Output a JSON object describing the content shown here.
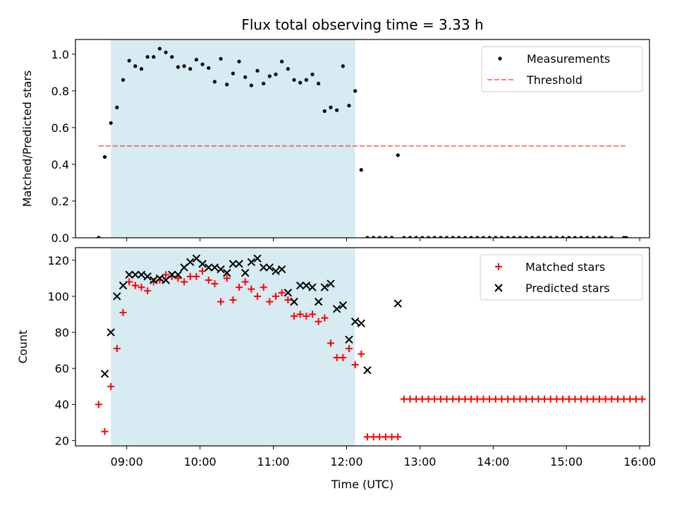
{
  "title": "Flux total observing time = 3.33 h",
  "chart_data": [
    {
      "type": "scatter",
      "ylabel": "Matched/Predicted stars",
      "xlabel": "",
      "xlim": [
        "08:18",
        "16:08"
      ],
      "ylim": [
        0,
        1.08
      ],
      "yticks": [
        "0.0",
        "0.2",
        "0.4",
        "0.6",
        "0.8",
        "1.0"
      ],
      "shaded_interval": [
        "08:47",
        "12:07"
      ],
      "shade_color": "#add8e6",
      "threshold": {
        "name": "Threshold",
        "value": 0.5,
        "x_range": [
          "08:37",
          "15:49"
        ],
        "color": "#ff0000"
      },
      "legend": {
        "placement": "top-right",
        "entries": [
          "Measurements",
          "Threshold"
        ]
      },
      "series": [
        {
          "name": "Measurements",
          "marker": "dot",
          "color": "#000000",
          "points": [
            [
              "08:37",
              0.0
            ],
            [
              "08:42",
              0.44
            ],
            [
              "08:47",
              0.625
            ],
            [
              "08:52",
              0.71
            ],
            [
              "08:57",
              0.86
            ],
            [
              "09:02",
              0.965
            ],
            [
              "09:07",
              0.935
            ],
            [
              "09:12",
              0.92
            ],
            [
              "09:17",
              0.985
            ],
            [
              "09:22",
              0.985
            ],
            [
              "09:27",
              1.03
            ],
            [
              "09:32",
              1.01
            ],
            [
              "09:37",
              0.985
            ],
            [
              "09:42",
              0.93
            ],
            [
              "09:47",
              0.935
            ],
            [
              "09:52",
              0.92
            ],
            [
              "09:57",
              0.97
            ],
            [
              "10:02",
              0.945
            ],
            [
              "10:07",
              0.925
            ],
            [
              "10:12",
              0.85
            ],
            [
              "10:17",
              0.975
            ],
            [
              "10:22",
              0.835
            ],
            [
              "10:27",
              0.895
            ],
            [
              "10:32",
              0.96
            ],
            [
              "10:37",
              0.875
            ],
            [
              "10:42",
              0.83
            ],
            [
              "10:47",
              0.91
            ],
            [
              "10:52",
              0.84
            ],
            [
              "10:57",
              0.88
            ],
            [
              "11:02",
              0.89
            ],
            [
              "11:07",
              0.96
            ],
            [
              "11:12",
              0.92
            ],
            [
              "11:17",
              0.86
            ],
            [
              "11:22",
              0.845
            ],
            [
              "11:27",
              0.86
            ],
            [
              "11:32",
              0.89
            ],
            [
              "11:37",
              0.84
            ],
            [
              "11:42",
              0.69
            ],
            [
              "11:47",
              0.71
            ],
            [
              "11:52",
              0.695
            ],
            [
              "11:57",
              0.935
            ],
            [
              "12:02",
              0.72
            ],
            [
              "12:07",
              0.8
            ],
            [
              "12:12",
              0.37
            ],
            [
              "12:17",
              0.0
            ],
            [
              "12:22",
              0.0
            ],
            [
              "12:27",
              0.0
            ],
            [
              "12:32",
              0.0
            ],
            [
              "12:37",
              0.0
            ],
            [
              "12:42",
              0.45
            ],
            [
              "12:47",
              0.0
            ],
            [
              "12:52",
              0.0
            ],
            [
              "12:57",
              0.0
            ],
            [
              "13:02",
              0.0
            ],
            [
              "13:07",
              0.0
            ],
            [
              "13:12",
              0.0
            ],
            [
              "13:17",
              0.0
            ],
            [
              "13:22",
              0.0
            ],
            [
              "13:27",
              0.0
            ],
            [
              "13:32",
              0.0
            ],
            [
              "13:37",
              0.0
            ],
            [
              "13:42",
              0.0
            ],
            [
              "13:47",
              0.0
            ],
            [
              "13:52",
              0.0
            ],
            [
              "13:57",
              0.0
            ],
            [
              "14:02",
              0.0
            ],
            [
              "14:07",
              0.0
            ],
            [
              "14:12",
              0.0
            ],
            [
              "14:17",
              0.0
            ],
            [
              "14:22",
              0.0
            ],
            [
              "14:27",
              0.0
            ],
            [
              "14:32",
              0.0
            ],
            [
              "14:37",
              0.0
            ],
            [
              "14:42",
              0.0
            ],
            [
              "14:47",
              0.0
            ],
            [
              "14:52",
              0.0
            ],
            [
              "14:57",
              0.0
            ],
            [
              "15:02",
              0.0
            ],
            [
              "15:07",
              0.0
            ],
            [
              "15:12",
              0.0
            ],
            [
              "15:17",
              0.0
            ],
            [
              "15:22",
              0.0
            ],
            [
              "15:27",
              0.0
            ],
            [
              "15:32",
              0.0
            ],
            [
              "15:37",
              0.0
            ],
            [
              "15:47",
              0.0
            ],
            [
              "15:49",
              0.0
            ]
          ]
        }
      ]
    },
    {
      "type": "scatter",
      "ylabel": "Count",
      "xlabel": "Time (UTC)",
      "xlim": [
        "08:18",
        "16:08"
      ],
      "ylim": [
        17,
        127
      ],
      "yticks": [
        "20",
        "40",
        "60",
        "80",
        "100",
        "120"
      ],
      "xticks": [
        "09:00",
        "10:00",
        "11:00",
        "12:00",
        "13:00",
        "14:00",
        "15:00",
        "16:00"
      ],
      "shaded_interval": [
        "08:47",
        "12:07"
      ],
      "shade_color": "#add8e6",
      "legend": {
        "placement": "top-right",
        "entries": [
          "Matched stars",
          "Predicted stars"
        ]
      },
      "series": [
        {
          "name": "Matched stars",
          "marker": "plus",
          "color": "#ff0000",
          "points": [
            [
              "08:37",
              40
            ],
            [
              "08:42",
              25
            ],
            [
              "08:47",
              50
            ],
            [
              "08:52",
              71
            ],
            [
              "08:57",
              91
            ],
            [
              "09:02",
              108
            ],
            [
              "09:07",
              106
            ],
            [
              "09:12",
              105
            ],
            [
              "09:17",
              103
            ],
            [
              "09:22",
              108
            ],
            [
              "09:27",
              109
            ],
            [
              "09:32",
              112
            ],
            [
              "09:37",
              111
            ],
            [
              "09:42",
              110
            ],
            [
              "09:47",
              108
            ],
            [
              "09:52",
              111
            ],
            [
              "09:57",
              111
            ],
            [
              "10:02",
              114
            ],
            [
              "10:07",
              109
            ],
            [
              "10:12",
              107
            ],
            [
              "10:17",
              97
            ],
            [
              "10:22",
              110
            ],
            [
              "10:27",
              98
            ],
            [
              "10:32",
              105
            ],
            [
              "10:37",
              108
            ],
            [
              "10:42",
              104
            ],
            [
              "10:47",
              100
            ],
            [
              "10:52",
              105
            ],
            [
              "10:57",
              97
            ],
            [
              "11:02",
              100
            ],
            [
              "11:07",
              102
            ],
            [
              "11:12",
              98
            ],
            [
              "11:17",
              89
            ],
            [
              "11:22",
              90
            ],
            [
              "11:27",
              89
            ],
            [
              "11:32",
              90
            ],
            [
              "11:37",
              86
            ],
            [
              "11:42",
              88
            ],
            [
              "11:47",
              74
            ],
            [
              "11:52",
              66
            ],
            [
              "11:57",
              66
            ],
            [
              "12:02",
              71
            ],
            [
              "12:07",
              62
            ],
            [
              "12:12",
              68
            ],
            [
              "12:17",
              22
            ],
            [
              "12:22",
              22
            ],
            [
              "12:27",
              22
            ],
            [
              "12:32",
              22
            ],
            [
              "12:37",
              22
            ],
            [
              "12:42",
              22
            ],
            [
              "12:47",
              43
            ],
            [
              "12:52",
              43
            ],
            [
              "12:57",
              43
            ],
            [
              "13:02",
              43
            ],
            [
              "13:07",
              43
            ],
            [
              "13:12",
              43
            ],
            [
              "13:17",
              43
            ],
            [
              "13:22",
              43
            ],
            [
              "13:27",
              43
            ],
            [
              "13:32",
              43
            ],
            [
              "13:37",
              43
            ],
            [
              "13:42",
              43
            ],
            [
              "13:47",
              43
            ],
            [
              "13:52",
              43
            ],
            [
              "13:57",
              43
            ],
            [
              "14:02",
              43
            ],
            [
              "14:07",
              43
            ],
            [
              "14:12",
              43
            ],
            [
              "14:17",
              43
            ],
            [
              "14:22",
              43
            ],
            [
              "14:27",
              43
            ],
            [
              "14:32",
              43
            ],
            [
              "14:37",
              43
            ],
            [
              "14:42",
              43
            ],
            [
              "14:47",
              43
            ],
            [
              "14:52",
              43
            ],
            [
              "14:57",
              43
            ],
            [
              "15:02",
              43
            ],
            [
              "15:07",
              43
            ],
            [
              "15:12",
              43
            ],
            [
              "15:17",
              43
            ],
            [
              "15:22",
              43
            ],
            [
              "15:27",
              43
            ],
            [
              "15:32",
              43
            ],
            [
              "15:37",
              43
            ],
            [
              "15:42",
              43
            ],
            [
              "15:47",
              43
            ],
            [
              "15:52",
              43
            ],
            [
              "15:57",
              43
            ],
            [
              "16:02",
              43
            ]
          ]
        },
        {
          "name": "Predicted stars",
          "marker": "x",
          "color": "#000000",
          "points": [
            [
              "08:42",
              57
            ],
            [
              "08:47",
              80
            ],
            [
              "08:52",
              100
            ],
            [
              "08:57",
              106
            ],
            [
              "09:02",
              112
            ],
            [
              "09:07",
              112
            ],
            [
              "09:12",
              112
            ],
            [
              "09:17",
              111
            ],
            [
              "09:22",
              109
            ],
            [
              "09:27",
              110
            ],
            [
              "09:32",
              109
            ],
            [
              "09:37",
              112
            ],
            [
              "09:42",
              112
            ],
            [
              "09:47",
              116
            ],
            [
              "09:52",
              119
            ],
            [
              "09:57",
              121
            ],
            [
              "10:02",
              118
            ],
            [
              "10:07",
              116
            ],
            [
              "10:12",
              116
            ],
            [
              "10:17",
              115
            ],
            [
              "10:22",
              113
            ],
            [
              "10:27",
              118
            ],
            [
              "10:32",
              118
            ],
            [
              "10:37",
              113
            ],
            [
              "10:42",
              119
            ],
            [
              "10:47",
              121
            ],
            [
              "10:52",
              116
            ],
            [
              "10:57",
              116
            ],
            [
              "11:02",
              114
            ],
            [
              "11:07",
              115
            ],
            [
              "11:12",
              102
            ],
            [
              "11:17",
              97
            ],
            [
              "11:22",
              106
            ],
            [
              "11:27",
              106
            ],
            [
              "11:32",
              105
            ],
            [
              "11:37",
              97
            ],
            [
              "11:42",
              105
            ],
            [
              "11:47",
              107
            ],
            [
              "11:52",
              93
            ],
            [
              "11:57",
              95
            ],
            [
              "12:02",
              76
            ],
            [
              "12:07",
              86
            ],
            [
              "12:12",
              85
            ],
            [
              "12:17",
              59
            ],
            [
              "12:42",
              96
            ]
          ]
        }
      ]
    }
  ]
}
